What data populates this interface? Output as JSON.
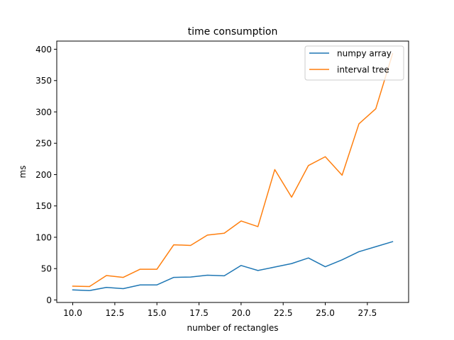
{
  "chart_data": {
    "type": "line",
    "title": "time consumption",
    "xlabel": "number of rectangles",
    "ylabel": "ms",
    "xlim": [
      9.05,
      29.95
    ],
    "ylim": [
      -4,
      413
    ],
    "xticks": [
      10.0,
      12.5,
      15.0,
      17.5,
      20.0,
      22.5,
      25.0,
      27.5
    ],
    "xtick_labels": [
      "10.0",
      "12.5",
      "15.0",
      "17.5",
      "20.0",
      "22.5",
      "25.0",
      "27.5"
    ],
    "yticks": [
      0,
      50,
      100,
      150,
      200,
      250,
      300,
      350,
      400
    ],
    "ytick_labels": [
      "0",
      "50",
      "100",
      "150",
      "200",
      "250",
      "300",
      "350",
      "400"
    ],
    "legend_position": "upper right",
    "x": [
      10,
      11,
      12,
      13,
      14,
      15,
      16,
      17,
      18,
      19,
      20,
      21,
      22,
      23,
      24,
      25,
      26,
      27,
      28,
      29
    ],
    "series": [
      {
        "name": "numpy array",
        "color": "#1f77b4",
        "values": [
          16,
          15,
          20,
          18,
          24,
          24,
          36,
          36.5,
          39.5,
          38.5,
          55,
          47,
          52.5,
          58,
          67,
          53,
          64,
          77,
          85,
          93
        ]
      },
      {
        "name": "interval tree",
        "color": "#ff7f0e",
        "values": [
          22,
          21.5,
          39,
          36,
          49,
          49,
          88,
          87,
          103.5,
          106.5,
          126,
          117,
          208,
          164,
          214.5,
          228.5,
          199,
          281,
          305,
          393
        ]
      }
    ]
  }
}
